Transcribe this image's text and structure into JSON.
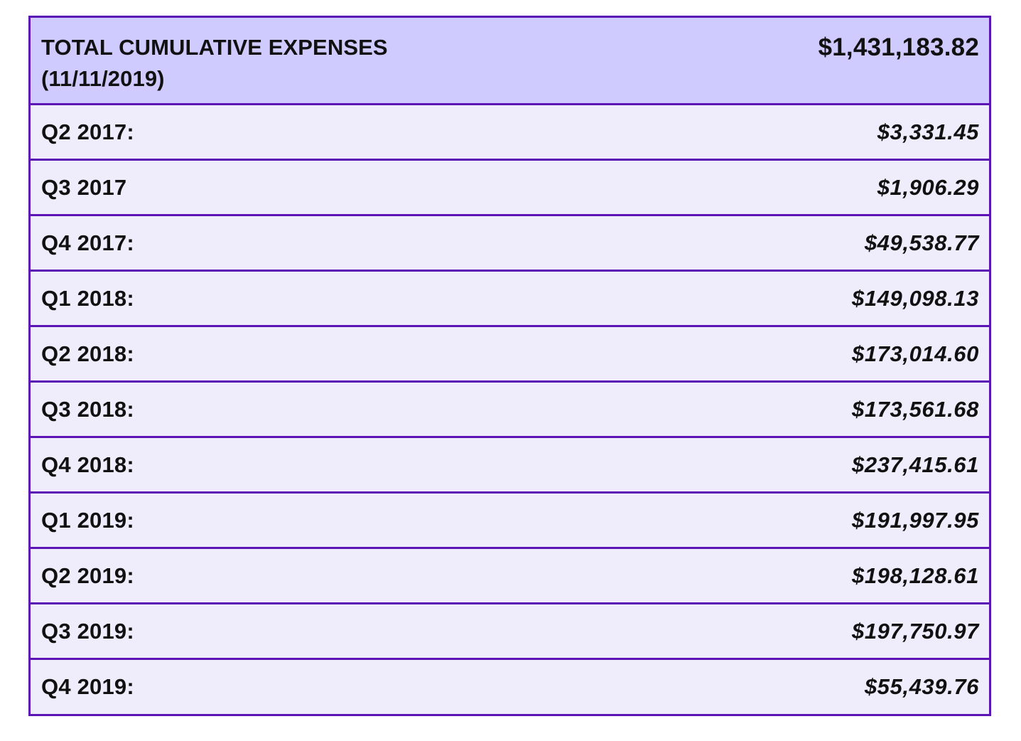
{
  "header": {
    "title": "TOTAL CUMULATIVE EXPENSES",
    "date": "(11/11/2019)",
    "total": "$1,431,183.82"
  },
  "rows": [
    {
      "label": "Q2 2017:",
      "value": "$3,331.45"
    },
    {
      "label": "Q3 2017",
      "value": "$1,906.29"
    },
    {
      "label": "Q4 2017:",
      "value": "$49,538.77"
    },
    {
      "label": "Q1 2018:",
      "value": "$149,098.13"
    },
    {
      "label": "Q2 2018:",
      "value": "$173,014.60"
    },
    {
      "label": "Q3 2018:",
      "value": "$173,561.68"
    },
    {
      "label": "Q4 2018:",
      "value": "$237,415.61"
    },
    {
      "label": "Q1 2019:",
      "value": "$191,997.95"
    },
    {
      "label": "Q2 2019:",
      "value": "$198,128.61"
    },
    {
      "label": "Q3 2019:",
      "value": "$197,750.97"
    },
    {
      "label": "Q4 2019:",
      "value": "$55,439.76"
    }
  ],
  "colors": {
    "border": "#5b15b5",
    "header_background": "#d0cbff",
    "row_background": "#efedfc"
  }
}
